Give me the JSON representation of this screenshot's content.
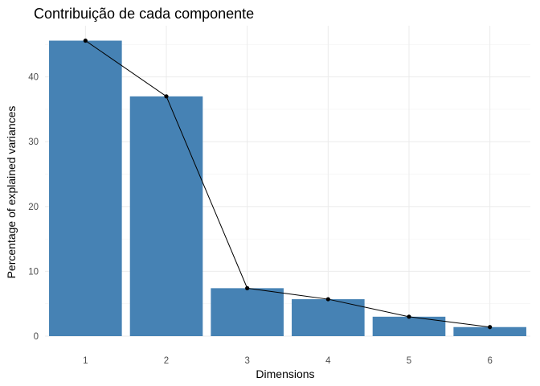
{
  "chart_data": {
    "type": "bar",
    "title": "Contribuição de cada componente",
    "xlabel": "Dimensions",
    "ylabel": "Percentage of explained variances",
    "categories": [
      "1",
      "2",
      "3",
      "4",
      "5",
      "6"
    ],
    "values": [
      45.6,
      37.0,
      7.4,
      5.7,
      3.0,
      1.4
    ],
    "ylim": [
      0,
      47.9
    ],
    "yticks": [
      "0",
      "10",
      "20",
      "30",
      "40"
    ],
    "grid": true,
    "legend": "none",
    "overlay_line": true,
    "colors": {
      "bar": "#4682B4",
      "line": "#000000",
      "point": "#000000",
      "grid": "#ebebeb"
    }
  }
}
